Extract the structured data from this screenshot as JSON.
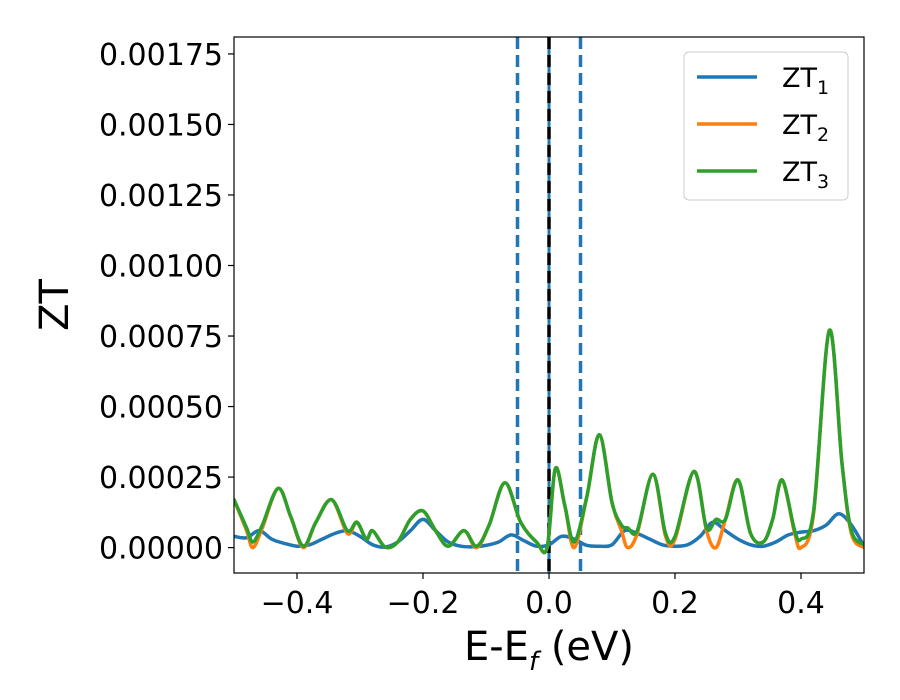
{
  "chart_data": {
    "type": "line",
    "xlabel": "E-E",
    "xlabel_sub": "f",
    "xlabel_unit": " (eV)",
    "ylabel": "ZT",
    "xlim": [
      -0.5,
      0.5
    ],
    "ylim": [
      -9e-05,
      0.00181
    ],
    "xticks": [
      -0.4,
      -0.2,
      0.0,
      0.2,
      0.4
    ],
    "xtick_labels": [
      "−0.4",
      "−0.2",
      "0.0",
      "0.2",
      "0.4"
    ],
    "yticks": [
      0,
      0.00025,
      0.0005,
      0.00075,
      0.001,
      0.00125,
      0.0015,
      0.00175
    ],
    "ytick_labels": [
      "0.00000",
      "0.00025",
      "0.00050",
      "0.00075",
      "0.00100",
      "0.00125",
      "0.00150",
      "0.00175"
    ],
    "grid": false,
    "legend_position": "top-right",
    "vlines": [
      {
        "x": -0.05,
        "style": "dashed",
        "color": "#1f77b4"
      },
      {
        "x": 0.0,
        "style": "solid",
        "color": "#1f77b4"
      },
      {
        "x": 0.0,
        "style": "dashed",
        "color": "#000000"
      },
      {
        "x": 0.05,
        "style": "dashed",
        "color": "#1f77b4"
      }
    ],
    "series": [
      {
        "name": "ZT",
        "name_sub": "1",
        "color": "#1f77b4",
        "points": [
          [
            -0.5,
            4e-05
          ],
          [
            -0.48,
            3.5e-05
          ],
          [
            -0.46,
            6e-05
          ],
          [
            -0.44,
            3e-05
          ],
          [
            -0.42,
            1.5e-05
          ],
          [
            -0.4,
            5e-06
          ],
          [
            -0.38,
            1e-05
          ],
          [
            -0.36,
            3e-05
          ],
          [
            -0.34,
            5e-05
          ],
          [
            -0.32,
            6e-05
          ],
          [
            -0.3,
            4e-05
          ],
          [
            -0.28,
            1e-05
          ],
          [
            -0.26,
            2e-06
          ],
          [
            -0.24,
            2e-05
          ],
          [
            -0.22,
            6e-05
          ],
          [
            -0.2,
            0.0001
          ],
          [
            -0.18,
            6e-05
          ],
          [
            -0.16,
            2e-05
          ],
          [
            -0.14,
            5e-06
          ],
          [
            -0.12,
            3e-06
          ],
          [
            -0.1,
            8e-06
          ],
          [
            -0.08,
            2e-05
          ],
          [
            -0.06,
            4.5e-05
          ],
          [
            -0.04,
            2.5e-05
          ],
          [
            -0.02,
            5e-06
          ],
          [
            0.0,
            1e-05
          ],
          [
            0.02,
            4e-05
          ],
          [
            0.04,
            3e-05
          ],
          [
            0.06,
            8e-06
          ],
          [
            0.08,
            5e-06
          ],
          [
            0.1,
            1e-05
          ],
          [
            0.12,
            6e-05
          ],
          [
            0.14,
            5e-05
          ],
          [
            0.16,
            3e-05
          ],
          [
            0.18,
            1e-05
          ],
          [
            0.2,
            5e-06
          ],
          [
            0.22,
            1e-05
          ],
          [
            0.24,
            4e-05
          ],
          [
            0.26,
            9e-05
          ],
          [
            0.28,
            6e-05
          ],
          [
            0.3,
            3e-05
          ],
          [
            0.32,
            1e-05
          ],
          [
            0.34,
            5e-06
          ],
          [
            0.36,
            2e-05
          ],
          [
            0.38,
            4.5e-05
          ],
          [
            0.4,
            5.5e-05
          ],
          [
            0.42,
            6e-05
          ],
          [
            0.44,
            8e-05
          ],
          [
            0.46,
            0.00012
          ],
          [
            0.48,
            8e-05
          ],
          [
            0.5,
            5e-06
          ]
        ]
      },
      {
        "name": "ZT",
        "name_sub": "2",
        "color": "#ff7f0e",
        "points": [
          [
            -0.5,
            0.00017
          ],
          [
            -0.48,
            6e-05
          ],
          [
            -0.47,
            0.0
          ],
          [
            -0.455,
            7e-05
          ],
          [
            -0.43,
            0.00021
          ],
          [
            -0.41,
            0.00011
          ],
          [
            -0.39,
            0.0
          ],
          [
            -0.37,
            9e-05
          ],
          [
            -0.345,
            0.00017
          ],
          [
            -0.32,
            5e-05
          ],
          [
            -0.305,
            9e-05
          ],
          [
            -0.29,
            3e-05
          ],
          [
            -0.28,
            6e-05
          ],
          [
            -0.26,
            2e-06
          ],
          [
            -0.24,
            2e-05
          ],
          [
            -0.22,
            0.0001
          ],
          [
            -0.2,
            0.00013
          ],
          [
            -0.18,
            6e-05
          ],
          [
            -0.16,
            5e-06
          ],
          [
            -0.135,
            6e-05
          ],
          [
            -0.115,
            0.0
          ],
          [
            -0.095,
            8e-05
          ],
          [
            -0.07,
            0.00023
          ],
          [
            -0.045,
            9e-05
          ],
          [
            -0.02,
            2e-05
          ],
          [
            -0.003,
            0.0
          ],
          [
            0.01,
            0.00028
          ],
          [
            0.025,
            0.00015
          ],
          [
            0.04,
            0.0
          ],
          [
            0.06,
            0.00018
          ],
          [
            0.08,
            0.0004
          ],
          [
            0.1,
            0.00016
          ],
          [
            0.115,
            6e-05
          ],
          [
            0.125,
            0.0
          ],
          [
            0.14,
            5e-05
          ],
          [
            0.165,
            0.00026
          ],
          [
            0.185,
            4e-05
          ],
          [
            0.2,
            3e-05
          ],
          [
            0.23,
            0.00027
          ],
          [
            0.25,
            6e-05
          ],
          [
            0.265,
            0.0
          ],
          [
            0.28,
            0.0001
          ],
          [
            0.3,
            0.00024
          ],
          [
            0.32,
            5e-05
          ],
          [
            0.34,
            2e-05
          ],
          [
            0.355,
            0.0001
          ],
          [
            0.37,
            0.00024
          ],
          [
            0.39,
            5e-05
          ],
          [
            0.4,
            0.0
          ],
          [
            0.42,
            0.00012
          ],
          [
            0.445,
            0.00077
          ],
          [
            0.465,
            0.0003
          ],
          [
            0.48,
            5e-05
          ],
          [
            0.5,
            0.0
          ]
        ]
      },
      {
        "name": "ZT",
        "name_sub": "3",
        "color": "#2ca02c",
        "points": [
          [
            -0.5,
            0.00017
          ],
          [
            -0.48,
            7e-05
          ],
          [
            -0.47,
            2e-05
          ],
          [
            -0.455,
            8e-05
          ],
          [
            -0.43,
            0.00021
          ],
          [
            -0.41,
            0.00011
          ],
          [
            -0.39,
            5e-06
          ],
          [
            -0.37,
            9e-05
          ],
          [
            -0.345,
            0.00017
          ],
          [
            -0.32,
            6e-05
          ],
          [
            -0.305,
            9e-05
          ],
          [
            -0.29,
            3e-05
          ],
          [
            -0.28,
            6e-05
          ],
          [
            -0.26,
            2e-06
          ],
          [
            -0.24,
            2e-05
          ],
          [
            -0.22,
            0.0001
          ],
          [
            -0.2,
            0.00013
          ],
          [
            -0.18,
            6e-05
          ],
          [
            -0.16,
            5e-06
          ],
          [
            -0.135,
            6e-05
          ],
          [
            -0.115,
            5e-06
          ],
          [
            -0.095,
            8e-05
          ],
          [
            -0.07,
            0.00023
          ],
          [
            -0.045,
            9e-05
          ],
          [
            -0.02,
            2e-05
          ],
          [
            -0.003,
            0.0
          ],
          [
            0.01,
            0.00028
          ],
          [
            0.025,
            0.00015
          ],
          [
            0.04,
            2e-05
          ],
          [
            0.06,
            0.00018
          ],
          [
            0.08,
            0.0004
          ],
          [
            0.1,
            0.00016
          ],
          [
            0.115,
            8e-05
          ],
          [
            0.125,
            7e-05
          ],
          [
            0.14,
            6e-05
          ],
          [
            0.165,
            0.00026
          ],
          [
            0.185,
            5e-05
          ],
          [
            0.2,
            4e-05
          ],
          [
            0.23,
            0.00027
          ],
          [
            0.25,
            7e-05
          ],
          [
            0.265,
            0.0001
          ],
          [
            0.28,
            0.0001
          ],
          [
            0.3,
            0.00024
          ],
          [
            0.32,
            5e-05
          ],
          [
            0.34,
            2e-05
          ],
          [
            0.355,
            0.0001
          ],
          [
            0.37,
            0.00024
          ],
          [
            0.39,
            6e-05
          ],
          [
            0.4,
            3e-05
          ],
          [
            0.42,
            0.00013
          ],
          [
            0.445,
            0.00077
          ],
          [
            0.465,
            0.0003
          ],
          [
            0.48,
            6e-05
          ],
          [
            0.5,
            1e-05
          ]
        ]
      }
    ]
  }
}
